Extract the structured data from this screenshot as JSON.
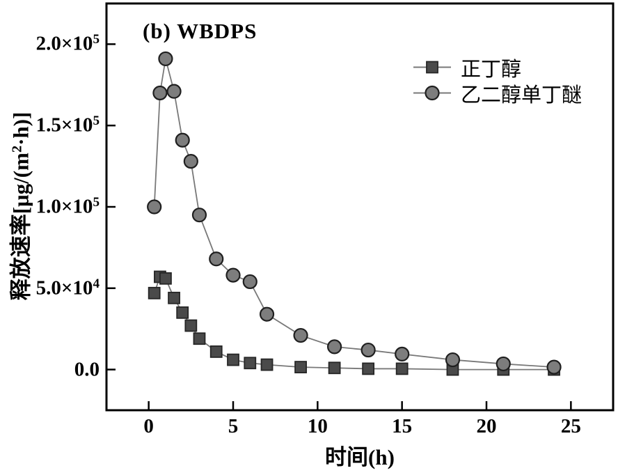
{
  "chart_data": {
    "type": "line",
    "title": "(b) WBDPS",
    "xlabel": "时间(h)",
    "ylabel": "释放速率[μg/(m^2·h)]",
    "xlim": [
      -2.5,
      27.5
    ],
    "ylim": [
      -25000,
      225000
    ],
    "grid": false,
    "legend_position": "upper-right-inside",
    "x_ticks": [
      {
        "v": 0,
        "label": "0"
      },
      {
        "v": 5,
        "label": "5"
      },
      {
        "v": 10,
        "label": "10"
      },
      {
        "v": 15,
        "label": "15"
      },
      {
        "v": 20,
        "label": "20"
      },
      {
        "v": 25,
        "label": "25"
      }
    ],
    "y_ticks": [
      {
        "v": 0,
        "label": "0.0"
      },
      {
        "v": 50000,
        "label": "5.0×10^4"
      },
      {
        "v": 100000,
        "label": "1.0×10^5"
      },
      {
        "v": 150000,
        "label": "1.5×10^5"
      },
      {
        "v": 200000,
        "label": "2.0×10^5"
      }
    ],
    "x": [
      0.33,
      0.67,
      1,
      1.5,
      2,
      2.5,
      3,
      4,
      5,
      6,
      7,
      9,
      11,
      13,
      15,
      18,
      21,
      24
    ],
    "series": [
      {
        "name": "正丁醇",
        "marker": "square",
        "marker_fill": "#4a4a4a",
        "marker_edge": "#262626",
        "line_color": "#787878",
        "values": [
          47000,
          57000,
          56000,
          44000,
          35000,
          27000,
          19000,
          11000,
          6000,
          4000,
          3000,
          1500,
          1000,
          500,
          500,
          0,
          0,
          0
        ]
      },
      {
        "name": "乙二醇单丁醚",
        "marker": "circle",
        "marker_fill": "#7d7d7d",
        "marker_edge": "#1f1f1f",
        "line_color": "#787878",
        "values": [
          100000,
          170000,
          191000,
          171000,
          141000,
          128000,
          95000,
          68000,
          58000,
          54000,
          34000,
          21000,
          14000,
          12000,
          9500,
          6000,
          3500,
          1500
        ]
      }
    ],
    "frame_color": "#000000",
    "background_color": "#ffffff"
  }
}
